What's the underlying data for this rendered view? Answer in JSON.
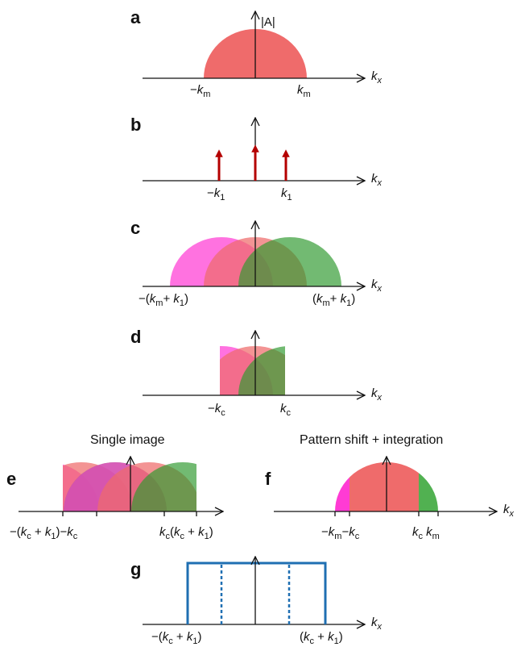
{
  "colors": {
    "central": "#ef6b6b",
    "left": "#ff3bd4",
    "right": "#3ea93e",
    "arrow": "#b40000",
    "window": "#1f6fb2",
    "axis": "#111111"
  },
  "axis_symbol": "k",
  "axis_subscript": "x",
  "panels": {
    "a": {
      "letter": "a",
      "ylabel": "|A|",
      "ticks": [
        {
          "pre": "−",
          "sym": "k",
          "sub": "m",
          "post": ""
        },
        {
          "pre": "",
          "sym": "k",
          "sub": "m",
          "post": ""
        }
      ]
    },
    "b": {
      "letter": "b",
      "ticks": [
        {
          "pre": "−",
          "sym": "k",
          "sub": "1",
          "post": ""
        },
        {
          "pre": "",
          "sym": "k",
          "sub": "1",
          "post": ""
        }
      ]
    },
    "c": {
      "letter": "c",
      "ticks": [
        {
          "pre": "−(",
          "sym": "k",
          "sub": "m",
          "post": "+ ",
          "sym2": "k",
          "sub2": "1",
          "post2": ")"
        },
        {
          "pre": "(",
          "sym": "k",
          "sub": "m",
          "post": "+ ",
          "sym2": "k",
          "sub2": "1",
          "post2": ")"
        }
      ]
    },
    "d": {
      "letter": "d",
      "ticks": [
        {
          "pre": "−",
          "sym": "k",
          "sub": "c",
          "post": ""
        },
        {
          "pre": "",
          "sym": "k",
          "sub": "c",
          "post": ""
        }
      ]
    },
    "e": {
      "letter": "e",
      "title": "Single image",
      "ticks": [
        {
          "pre": "−(",
          "sym": "k",
          "sub": "c",
          "post": " + ",
          "sym2": "k",
          "sub2": "1",
          "post2": ")−",
          "sym3": "k",
          "sub3": "c"
        },
        {
          "pre": "",
          "sym": "k",
          "sub": "c",
          "post": "(",
          "sym2": "k",
          "sub2": "c",
          "post2": " + ",
          "sym3": "k",
          "sub3": "1",
          "post3": ")"
        }
      ]
    },
    "f": {
      "letter": "f",
      "title": "Pattern shift + integration",
      "ticks": [
        {
          "pre": "−",
          "sym": "k",
          "sub": "m",
          "post": "−",
          "sym2": "k",
          "sub2": "c"
        },
        {
          "pre": "",
          "sym": "k",
          "sub": "c",
          "post": " ",
          "sym2": "k",
          "sub2": "m"
        }
      ]
    },
    "g": {
      "letter": "g",
      "ticks": [
        {
          "pre": "−(",
          "sym": "k",
          "sub": "c",
          "post": " + ",
          "sym2": "k",
          "sub2": "1",
          "post2": ")"
        },
        {
          "pre": "(",
          "sym": "k",
          "sub": "c",
          "post": " + ",
          "sym2": "k",
          "sub2": "1",
          "post2": ")"
        }
      ]
    }
  }
}
